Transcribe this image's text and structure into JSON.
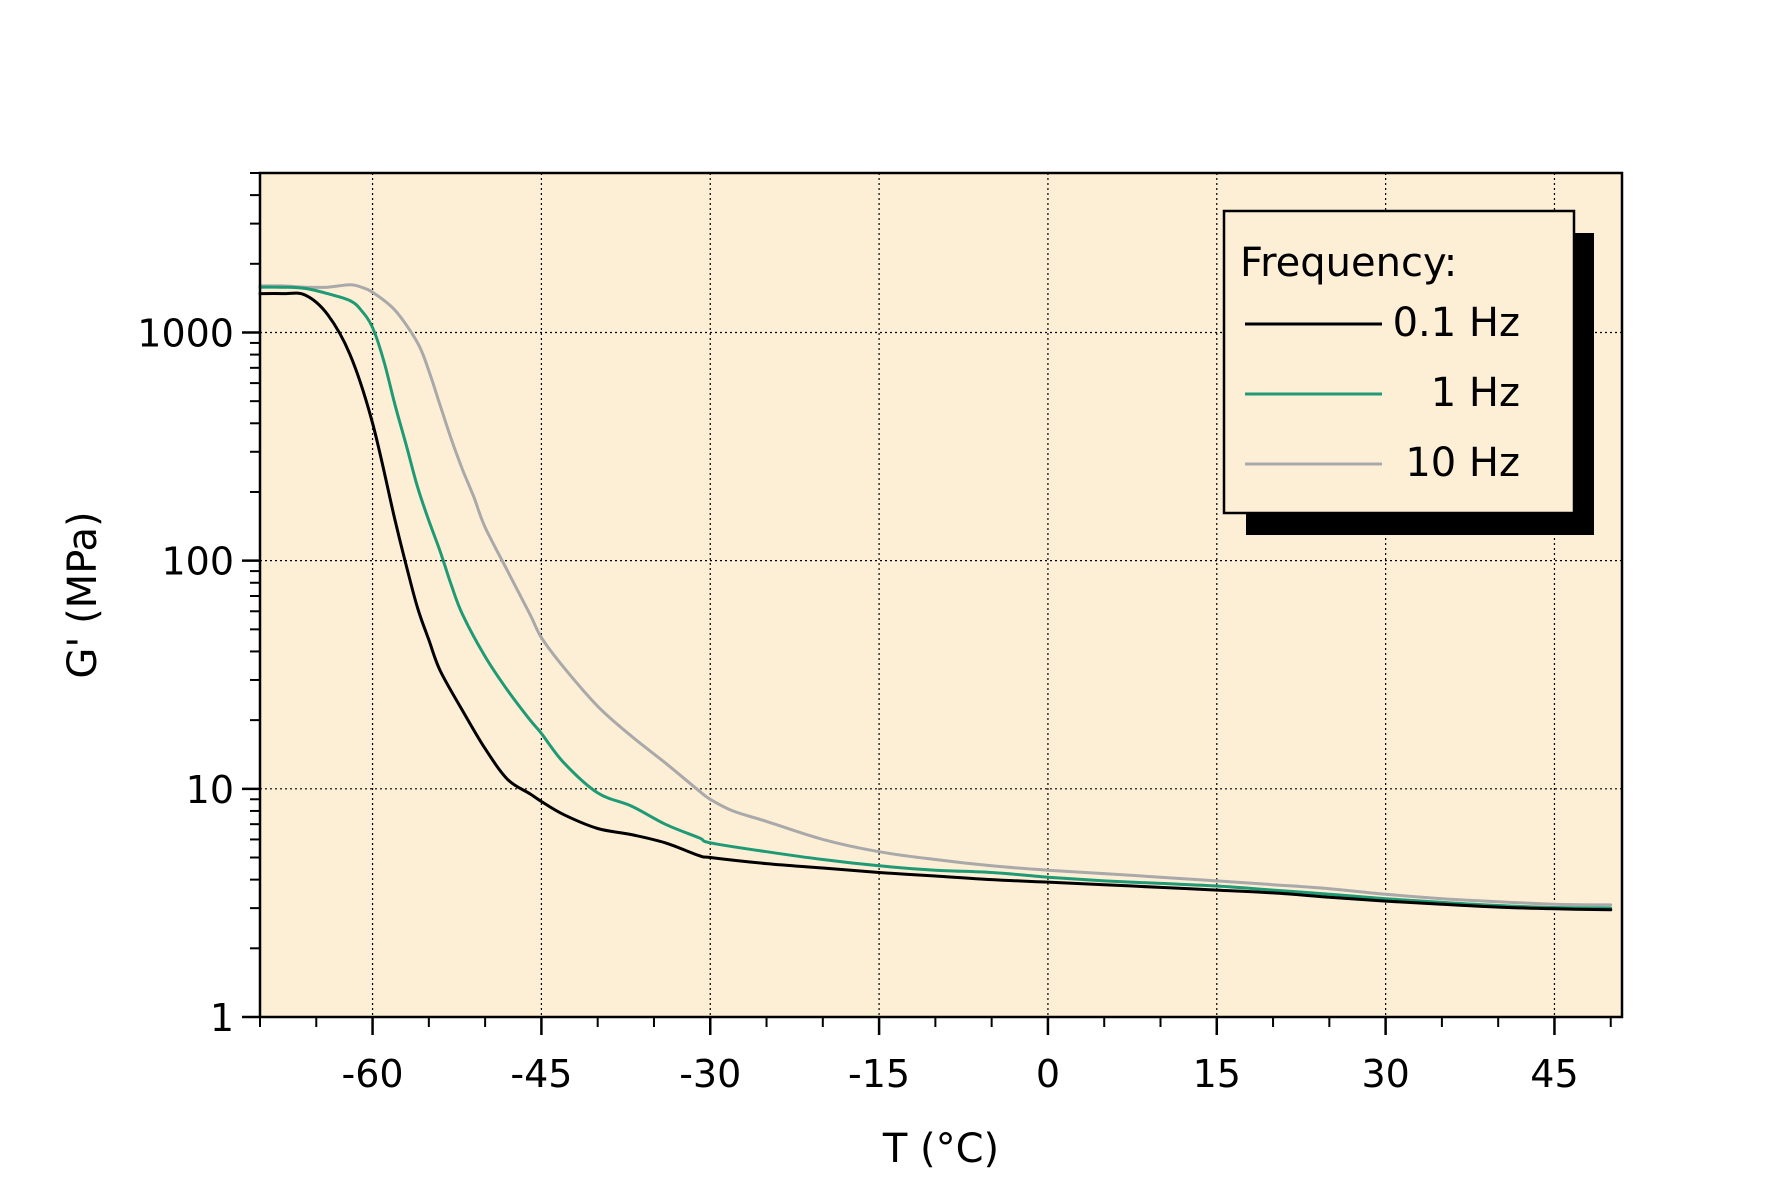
{
  "chart_data": {
    "type": "line",
    "xlabel": "T (°C)",
    "ylabel": "G' (MPa)",
    "xlim": [
      -70,
      51
    ],
    "ylim": [
      1,
      5000
    ],
    "yscale": "log",
    "xticks": [
      -60,
      -45,
      -30,
      -15,
      0,
      15,
      30,
      45
    ],
    "xtick_labels": [
      "-60",
      "-45",
      "-30",
      "-15",
      "0",
      "15",
      "30",
      "45"
    ],
    "yticks": [
      1,
      10,
      100,
      1000
    ],
    "ytick_labels": [
      "1",
      "10",
      "100",
      "1000"
    ],
    "grid": true,
    "plot_background": "#fdeed6",
    "legend": {
      "title": "Frequency:",
      "position": "top-right",
      "entries": [
        "0.1 Hz",
        "1 Hz",
        "10 Hz"
      ]
    },
    "series": [
      {
        "name": "0.1 Hz",
        "color": "#000000",
        "x": [
          -70,
          -68,
          -66,
          -64,
          -62,
          -60,
          -58,
          -57,
          -56,
          -55,
          -54,
          -52,
          -50,
          -48,
          -46,
          -45,
          -43,
          -40,
          -37,
          -34,
          -31,
          -30,
          -25,
          -20,
          -15,
          -10,
          -5,
          0,
          5,
          10,
          15,
          20,
          25,
          30,
          35,
          40,
          45,
          50
        ],
        "y": [
          1480,
          1480,
          1460,
          1200,
          800,
          400,
          150,
          95,
          62,
          45,
          33,
          22,
          15,
          11,
          9.5,
          8.8,
          7.7,
          6.7,
          6.3,
          5.8,
          5.1,
          5.0,
          4.7,
          4.5,
          4.3,
          4.15,
          4.0,
          3.9,
          3.8,
          3.7,
          3.6,
          3.5,
          3.35,
          3.22,
          3.12,
          3.03,
          2.98,
          2.95
        ]
      },
      {
        "name": "1 Hz",
        "color": "#1e9a74",
        "x": [
          -70,
          -68,
          -66,
          -64,
          -62,
          -61,
          -60,
          -59,
          -58,
          -57,
          -56,
          -55,
          -54,
          -53,
          -52,
          -50,
          -48,
          -46,
          -45,
          -43,
          -40,
          -37,
          -34,
          -31,
          -30,
          -25,
          -20,
          -15,
          -10,
          -5,
          0,
          5,
          10,
          15,
          20,
          25,
          30,
          35,
          40,
          45,
          50
        ],
        "y": [
          1580,
          1580,
          1560,
          1480,
          1380,
          1250,
          1050,
          750,
          480,
          320,
          210,
          150,
          110,
          78,
          58,
          38,
          27,
          20,
          17.5,
          13,
          9.6,
          8.4,
          7.0,
          6.1,
          5.8,
          5.3,
          4.9,
          4.6,
          4.4,
          4.3,
          4.1,
          3.95,
          3.85,
          3.75,
          3.6,
          3.45,
          3.3,
          3.18,
          3.08,
          3.02,
          3.0
        ]
      },
      {
        "name": "10 Hz",
        "color": "#a9a9a9",
        "x": [
          -70,
          -68,
          -66,
          -64,
          -62,
          -61,
          -60,
          -58,
          -56,
          -55,
          -54,
          -53,
          -52,
          -51,
          -50,
          -48,
          -46,
          -45,
          -43,
          -40,
          -37,
          -34,
          -31,
          -30,
          -28,
          -25,
          -20,
          -15,
          -10,
          -5,
          0,
          5,
          10,
          15,
          20,
          25,
          30,
          35,
          40,
          45,
          50
        ],
        "y": [
          1600,
          1600,
          1580,
          1580,
          1620,
          1580,
          1500,
          1250,
          900,
          680,
          480,
          340,
          250,
          190,
          140,
          90,
          58,
          46,
          34,
          23,
          17,
          13,
          9.8,
          9.0,
          8.0,
          7.2,
          6.0,
          5.3,
          4.9,
          4.6,
          4.4,
          4.25,
          4.1,
          3.95,
          3.8,
          3.65,
          3.45,
          3.3,
          3.2,
          3.12,
          3.1
        ]
      }
    ]
  }
}
